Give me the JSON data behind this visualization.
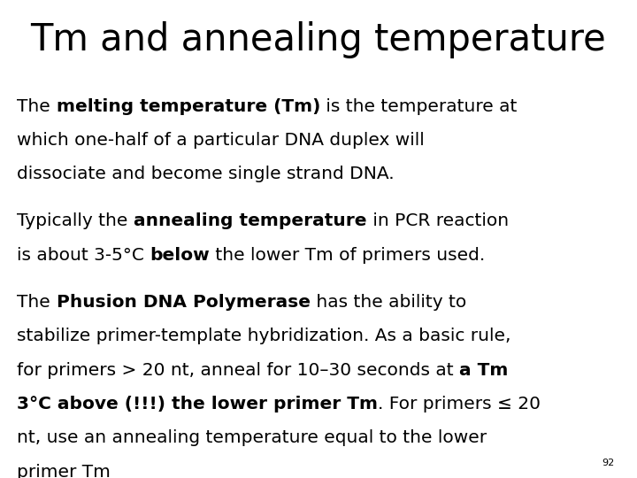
{
  "title": "Tm and annealing temperature",
  "background_color": "#ffffff",
  "text_color": "#000000",
  "title_fontsize": 30,
  "body_fontsize": 14.5,
  "small_fontsize": 8,
  "page_number": "92",
  "para1_lines": [
    [
      {
        "text": "The ",
        "bold": false
      },
      {
        "text": "melting temperature (Tm)",
        "bold": true
      },
      {
        "text": " is the temperature at",
        "bold": false
      }
    ],
    [
      {
        "text": "which one-half of a particular DNA duplex will",
        "bold": false
      }
    ],
    [
      {
        "text": "dissociate and become single strand DNA.",
        "bold": false
      }
    ]
  ],
  "para2_lines": [
    [
      {
        "text": "Typically the ",
        "bold": false
      },
      {
        "text": "annealing temperature",
        "bold": true
      },
      {
        "text": " in PCR reaction",
        "bold": false
      }
    ],
    [
      {
        "text": "is about 3-5°C ",
        "bold": false
      },
      {
        "text": "below",
        "bold": true
      },
      {
        "text": " the lower Tm of primers used.",
        "bold": false
      }
    ]
  ],
  "para3_lines": [
    [
      {
        "text": "The ",
        "bold": false
      },
      {
        "text": "Phusion DNA Polymerase",
        "bold": true
      },
      {
        "text": " has the ability to",
        "bold": false
      }
    ],
    [
      {
        "text": "stabilize primer-template hybridization. As a basic rule,",
        "bold": false
      }
    ],
    [
      {
        "text": "for primers > 20 nt, anneal for 10–30 seconds at ",
        "bold": false
      },
      {
        "text": "a Tm",
        "bold": true
      }
    ],
    [
      {
        "text": "3°C above (!!!) the lower primer Tm",
        "bold": true
      },
      {
        "text": ". For primers ≤ 20",
        "bold": false
      }
    ],
    [
      {
        "text": "nt, use an annealing temperature equal to the lower",
        "bold": false
      }
    ],
    [
      {
        "text": "primer Tm",
        "bold": false
      }
    ]
  ]
}
